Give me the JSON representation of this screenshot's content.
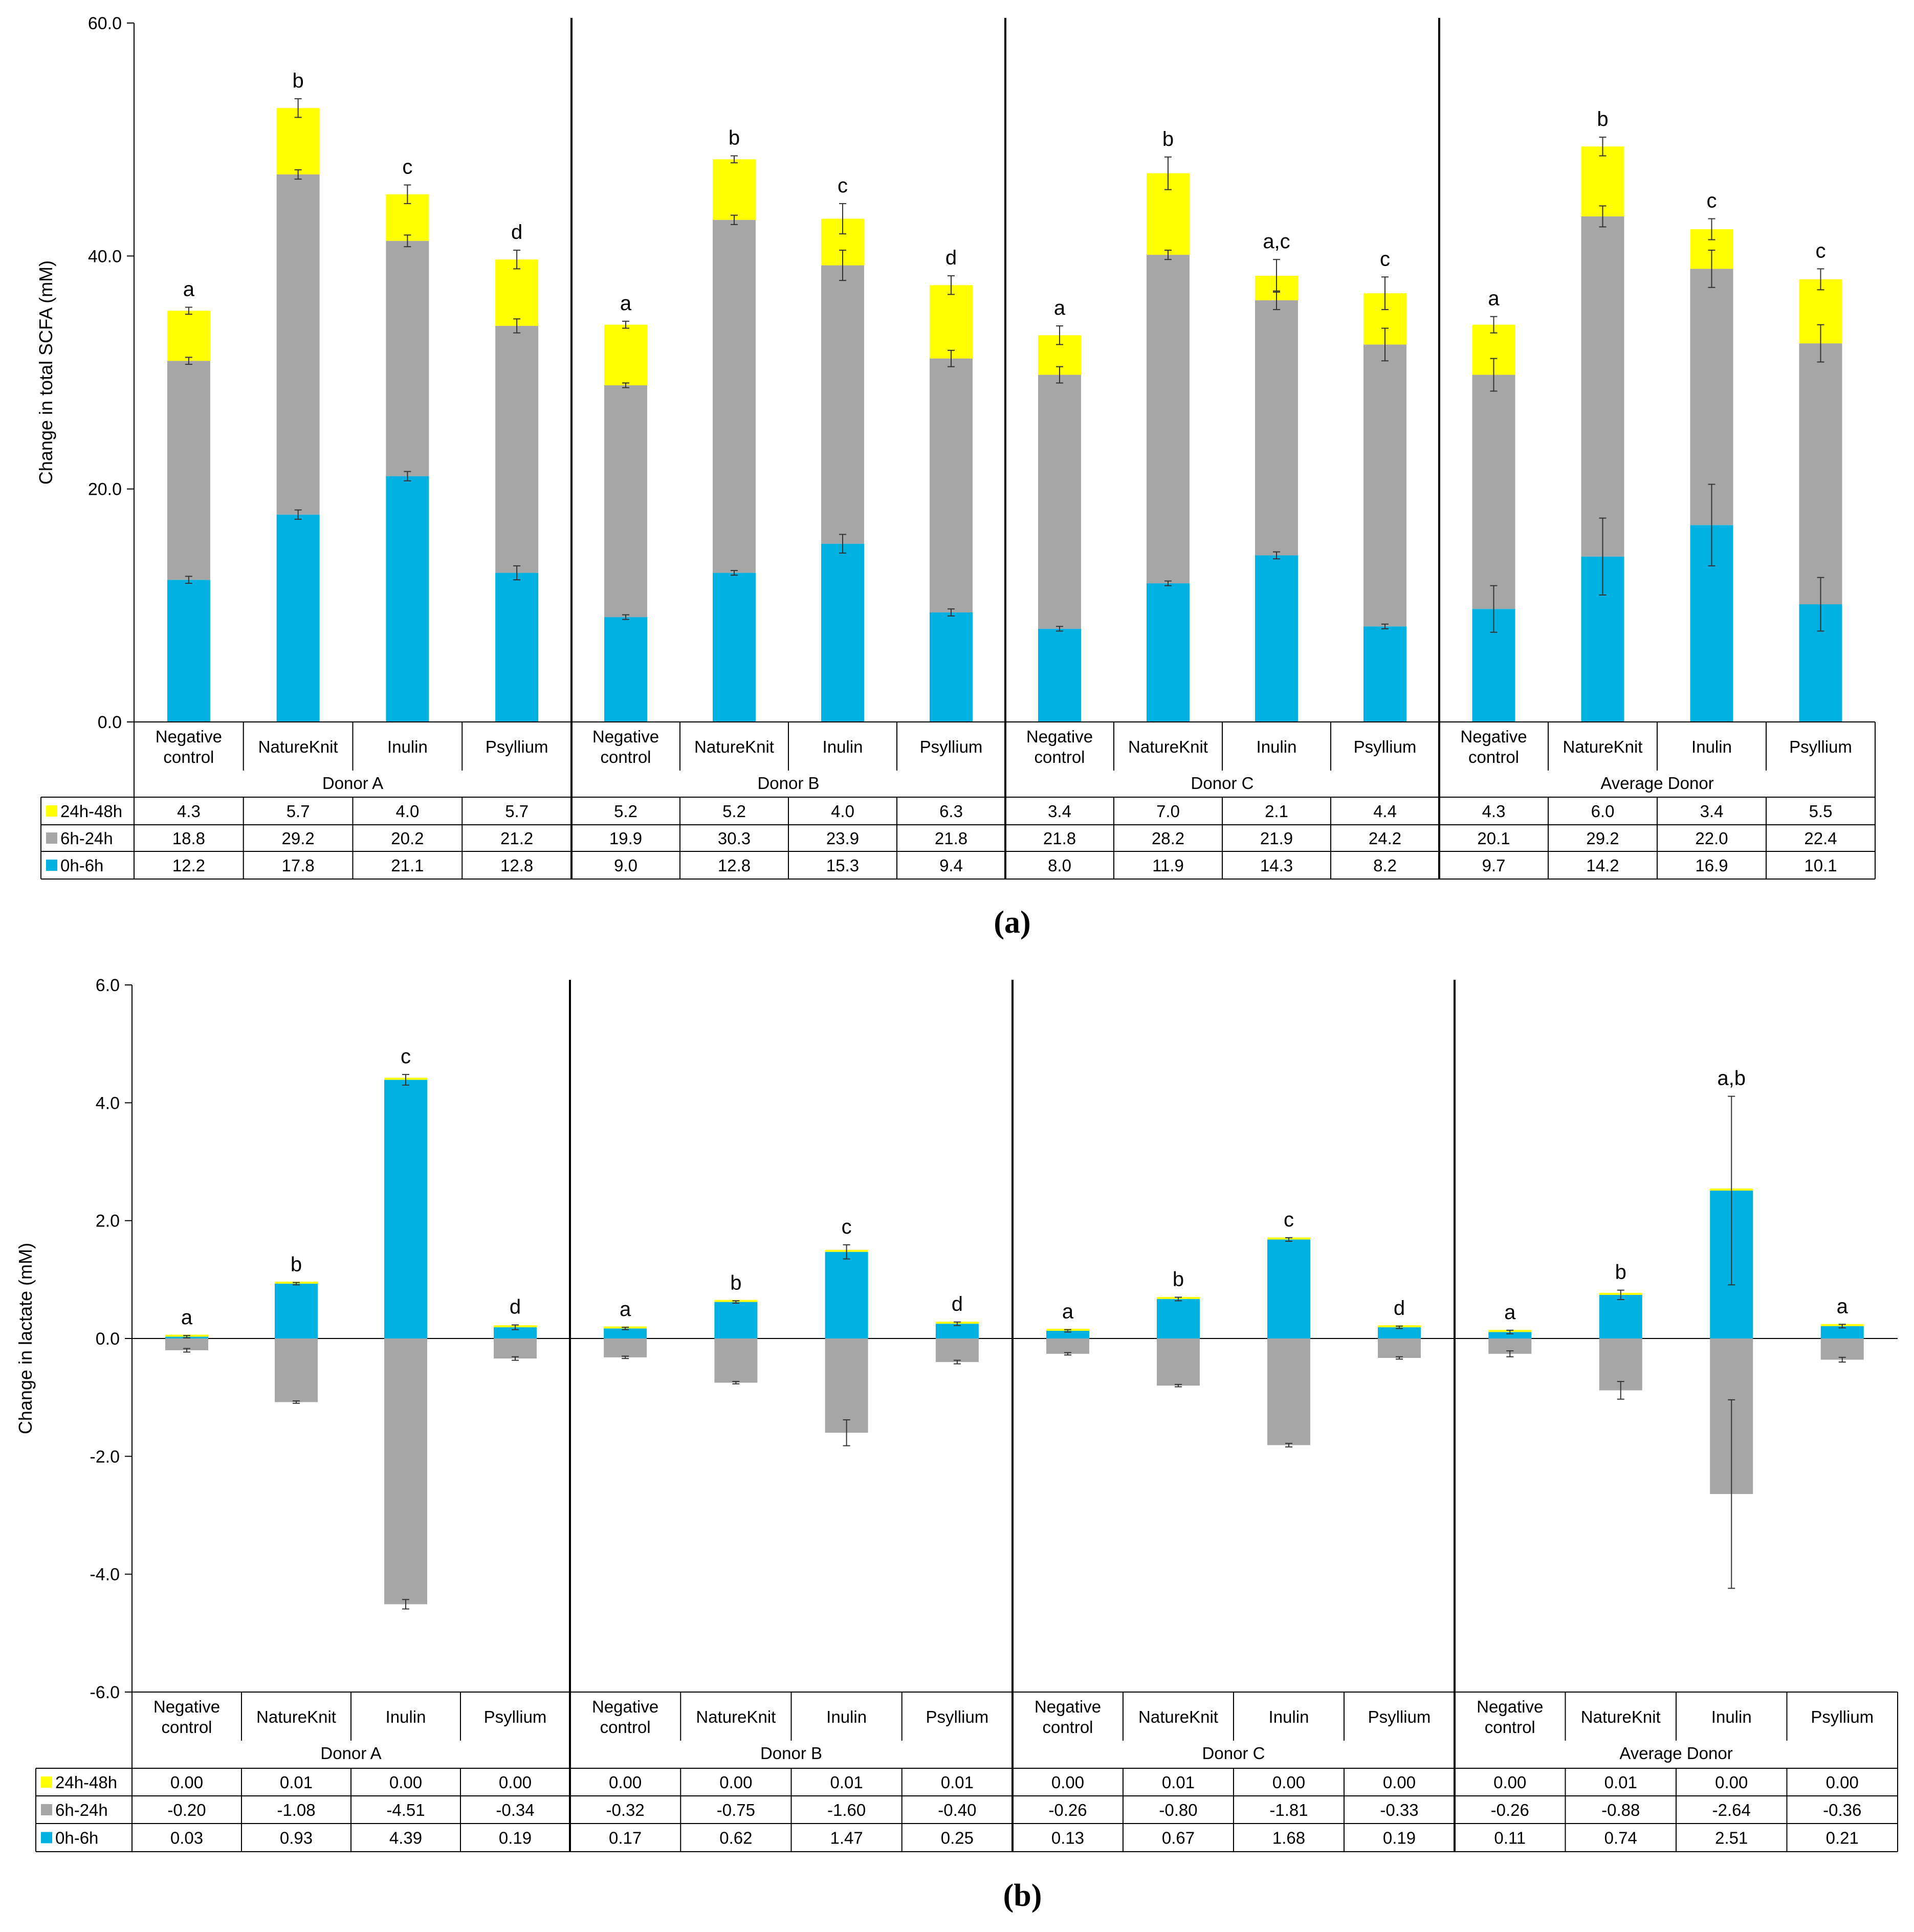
{
  "colors": {
    "s0": "#00b0e0",
    "s1": "#a6a6a6",
    "s2": "#ffff00",
    "axis": "#000000",
    "grid": "#000000"
  },
  "chart_data": [
    {
      "type": "bar",
      "stacked": true,
      "panel_label": "(a)",
      "ylabel": "Change in total SCFA (mM)",
      "ylim": [
        0,
        60
      ],
      "ytick_values": [
        0,
        20,
        40,
        60
      ],
      "yticks": [
        "0.0",
        "20.0",
        "40.0",
        "60.0"
      ],
      "groups": [
        "Donor A",
        "Donor B",
        "Donor C",
        "Average Donor"
      ],
      "categories": [
        "Negative control",
        "NatureKnit",
        "Inulin",
        "Psyllium"
      ],
      "series": [
        {
          "name": "24h-48h",
          "color": "#ffff00",
          "values": [
            [
              4.3,
              5.7,
              4.0,
              5.7
            ],
            [
              5.2,
              5.2,
              4.0,
              6.3
            ],
            [
              3.4,
              7.0,
              2.1,
              4.4
            ],
            [
              4.3,
              6.0,
              3.4,
              5.5
            ]
          ],
          "labels": [
            [
              "4.3",
              "5.7",
              "4.0",
              "5.7"
            ],
            [
              "5.2",
              "5.2",
              "4.0",
              "6.3"
            ],
            [
              "3.4",
              "7.0",
              "2.1",
              "4.4"
            ],
            [
              "4.3",
              "6.0",
              "3.4",
              "5.5"
            ]
          ]
        },
        {
          "name": "6h-24h",
          "color": "#a6a6a6",
          "values": [
            [
              18.8,
              29.2,
              20.2,
              21.2
            ],
            [
              19.9,
              30.3,
              23.9,
              21.8
            ],
            [
              21.8,
              28.2,
              21.9,
              24.2
            ],
            [
              20.1,
              29.2,
              22.0,
              22.4
            ]
          ],
          "labels": [
            [
              "18.8",
              "29.2",
              "20.2",
              "21.2"
            ],
            [
              "19.9",
              "30.3",
              "23.9",
              "21.8"
            ],
            [
              "21.8",
              "28.2",
              "21.9",
              "24.2"
            ],
            [
              "20.1",
              "29.2",
              "22.0",
              "22.4"
            ]
          ]
        },
        {
          "name": "0h-6h",
          "color": "#00b0e0",
          "values": [
            [
              12.2,
              17.8,
              21.1,
              12.8
            ],
            [
              9.0,
              12.8,
              15.3,
              9.4
            ],
            [
              8.0,
              11.9,
              14.3,
              8.2
            ],
            [
              9.7,
              14.2,
              16.9,
              10.1
            ]
          ],
          "labels": [
            [
              "12.2",
              "17.8",
              "21.1",
              "12.8"
            ],
            [
              "9.0",
              "12.8",
              "15.3",
              "9.4"
            ],
            [
              "8.0",
              "11.9",
              "14.3",
              "8.2"
            ],
            [
              "9.7",
              "14.2",
              "16.9",
              "10.1"
            ]
          ]
        }
      ],
      "significance": [
        [
          "a",
          "b",
          "c",
          "d"
        ],
        [
          "a",
          "b",
          "c",
          "d"
        ],
        [
          "a",
          "b",
          "a,c",
          "c"
        ],
        [
          "a",
          "b",
          "c",
          "c"
        ]
      ]
    },
    {
      "type": "bar",
      "stacked": true,
      "panel_label": "(b)",
      "ylabel": "Change in lactate (mM)",
      "ylim": [
        -6,
        6
      ],
      "ytick_values": [
        -6,
        -4,
        -2,
        0,
        2,
        4,
        6
      ],
      "yticks": [
        "-6.0",
        "-4.0",
        "-2.0",
        "0.0",
        "2.0",
        "4.0",
        "6.0"
      ],
      "groups": [
        "Donor A",
        "Donor B",
        "Donor C",
        "Average Donor"
      ],
      "categories": [
        "Negative control",
        "NatureKnit",
        "Inulin",
        "Psyllium"
      ],
      "series": [
        {
          "name": "24h-48h",
          "color": "#ffff00",
          "values": [
            [
              0.0,
              0.01,
              0.0,
              0.0
            ],
            [
              0.0,
              0.0,
              0.01,
              0.01
            ],
            [
              0.0,
              0.01,
              0.0,
              0.0
            ],
            [
              0.0,
              0.01,
              0.0,
              0.0
            ]
          ],
          "labels": [
            [
              "0.00",
              "0.01",
              "0.00",
              "0.00"
            ],
            [
              "0.00",
              "0.00",
              "0.01",
              "0.01"
            ],
            [
              "0.00",
              "0.01",
              "0.00",
              "0.00"
            ],
            [
              "0.00",
              "0.01",
              "0.00",
              "0.00"
            ]
          ]
        },
        {
          "name": "6h-24h",
          "color": "#a6a6a6",
          "values": [
            [
              -0.2,
              -1.08,
              -4.51,
              -0.34
            ],
            [
              -0.32,
              -0.75,
              -1.6,
              -0.4
            ],
            [
              -0.26,
              -0.8,
              -1.81,
              -0.33
            ],
            [
              -0.26,
              -0.88,
              -2.64,
              -0.36
            ]
          ],
          "labels": [
            [
              "-0.20",
              "-1.08",
              "-4.51",
              "-0.34"
            ],
            [
              "-0.32",
              "-0.75",
              "-1.60",
              "-0.40"
            ],
            [
              "-0.26",
              "-0.80",
              "-1.81",
              "-0.33"
            ],
            [
              "-0.26",
              "-0.88",
              "-2.64",
              "-0.36"
            ]
          ]
        },
        {
          "name": "0h-6h",
          "color": "#00b0e0",
          "values": [
            [
              0.03,
              0.93,
              4.39,
              0.19
            ],
            [
              0.17,
              0.62,
              1.47,
              0.25
            ],
            [
              0.13,
              0.67,
              1.68,
              0.19
            ],
            [
              0.11,
              0.74,
              2.51,
              0.21
            ]
          ],
          "labels": [
            [
              "0.03",
              "0.93",
              "4.39",
              "0.19"
            ],
            [
              "0.17",
              "0.62",
              "1.47",
              "0.25"
            ],
            [
              "0.13",
              "0.67",
              "1.68",
              "0.19"
            ],
            [
              "0.11",
              "0.74",
              "2.51",
              "0.21"
            ]
          ]
        }
      ],
      "significance": [
        [
          "a",
          "b",
          "c",
          "d"
        ],
        [
          "a",
          "b",
          "c",
          "d"
        ],
        [
          "a",
          "b",
          "c",
          "d"
        ],
        [
          "a",
          "b",
          "a,b",
          "a"
        ]
      ]
    }
  ]
}
